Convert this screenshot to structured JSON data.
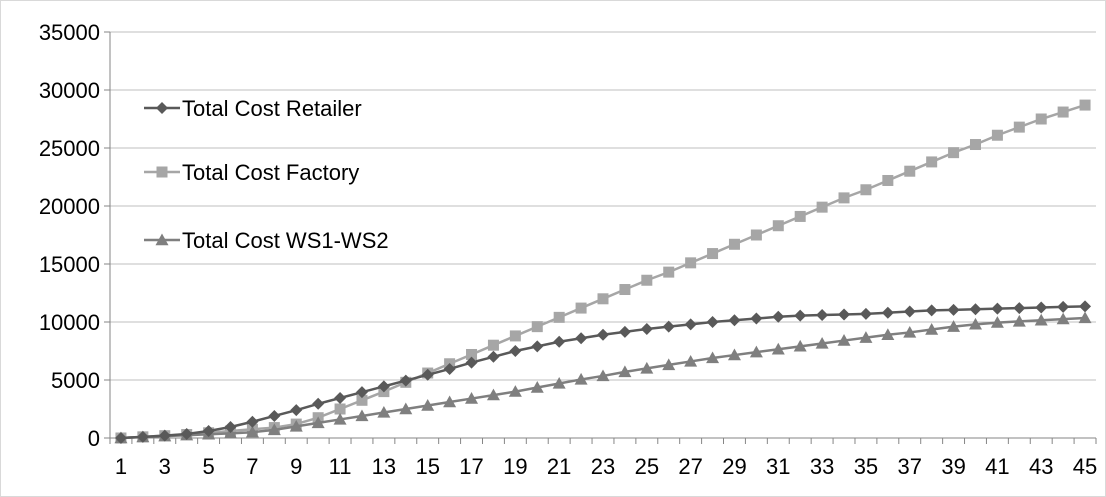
{
  "chart_data": {
    "type": "line",
    "title": "",
    "xlabel": "",
    "ylabel": "",
    "ylim": [
      0,
      35000
    ],
    "yticks": [
      0,
      5000,
      10000,
      15000,
      20000,
      25000,
      30000,
      35000
    ],
    "x": [
      1,
      2,
      3,
      4,
      5,
      6,
      7,
      8,
      9,
      10,
      11,
      12,
      13,
      14,
      15,
      16,
      17,
      18,
      19,
      20,
      21,
      22,
      23,
      24,
      25,
      26,
      27,
      28,
      29,
      30,
      31,
      32,
      33,
      34,
      35,
      36,
      37,
      38,
      39,
      40,
      41,
      42,
      43,
      44,
      45
    ],
    "xtick_labels": [
      1,
      3,
      5,
      7,
      9,
      11,
      13,
      15,
      17,
      19,
      21,
      23,
      25,
      27,
      29,
      31,
      33,
      35,
      37,
      39,
      41,
      43,
      45
    ],
    "grid": "horizontal",
    "legend_position": "top-left",
    "series": [
      {
        "name": "Total Cost Retailer",
        "marker": "diamond",
        "color": "#595959",
        "values": [
          0,
          100,
          200,
          350,
          600,
          950,
          1400,
          1900,
          2400,
          2950,
          3450,
          3950,
          4450,
          4950,
          5450,
          5950,
          6500,
          7000,
          7500,
          7900,
          8300,
          8600,
          8900,
          9150,
          9400,
          9600,
          9800,
          10000,
          10150,
          10300,
          10450,
          10550,
          10600,
          10650,
          10700,
          10800,
          10900,
          11000,
          11050,
          11100,
          11150,
          11200,
          11250,
          11300,
          11350
        ]
      },
      {
        "name": "Total Cost Factory",
        "marker": "square",
        "color": "#a6a6a6",
        "values": [
          0,
          100,
          200,
          300,
          450,
          600,
          750,
          900,
          1200,
          1750,
          2500,
          3250,
          4000,
          4800,
          5600,
          6400,
          7200,
          8000,
          8800,
          9600,
          10400,
          11200,
          12000,
          12800,
          13600,
          14300,
          15100,
          15900,
          16700,
          17500,
          18300,
          19100,
          19900,
          20700,
          21400,
          22200,
          23000,
          23800,
          24600,
          25300,
          26100,
          26800,
          27500,
          28100,
          28700
        ]
      },
      {
        "name": "Total Cost WS1-WS2",
        "marker": "triangle",
        "color": "#7f7f7f",
        "values": [
          0,
          80,
          160,
          240,
          320,
          400,
          500,
          700,
          1000,
          1300,
          1600,
          1900,
          2200,
          2500,
          2800,
          3100,
          3400,
          3700,
          4000,
          4350,
          4700,
          5050,
          5350,
          5700,
          6000,
          6300,
          6600,
          6900,
          7150,
          7400,
          7650,
          7900,
          8150,
          8400,
          8650,
          8900,
          9100,
          9350,
          9600,
          9800,
          9950,
          10050,
          10150,
          10250,
          10350
        ]
      }
    ]
  }
}
